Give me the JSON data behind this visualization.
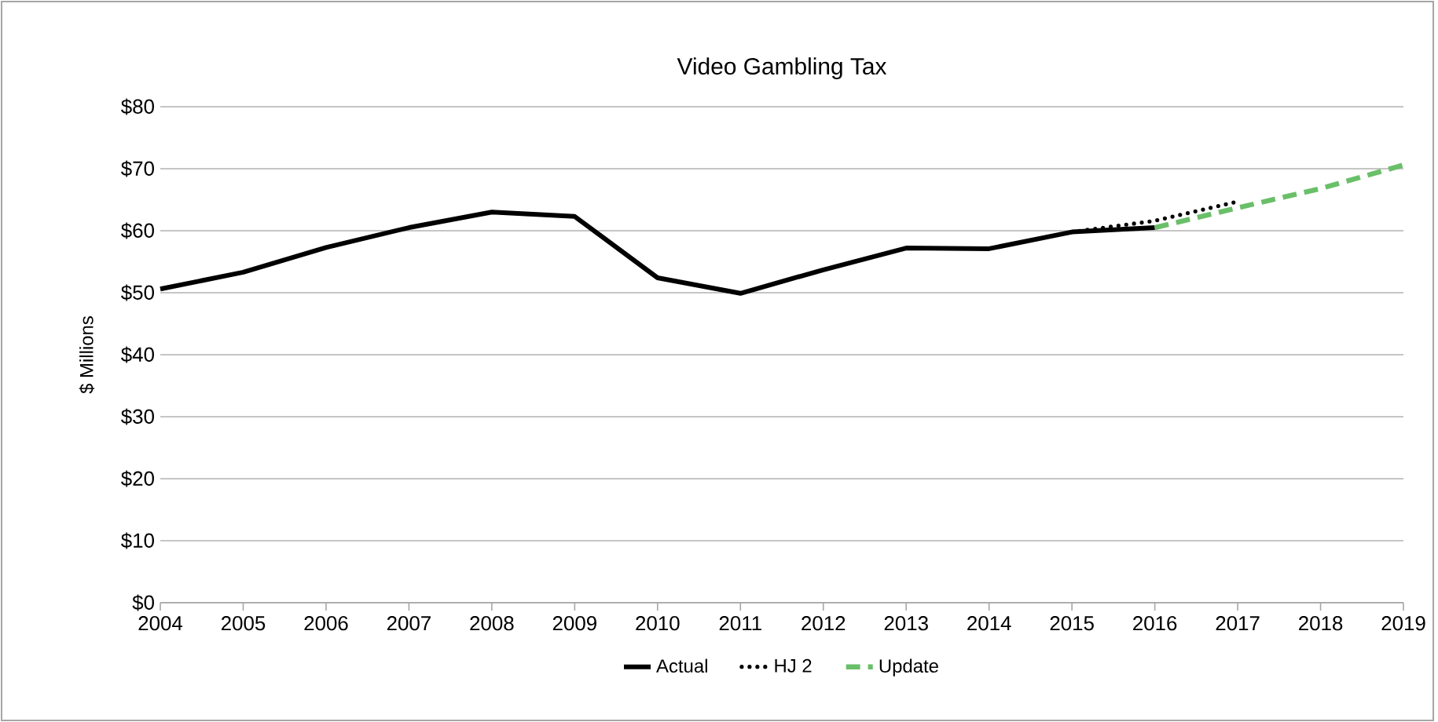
{
  "chart_data": {
    "type": "line",
    "title": "Video Gambling Tax",
    "ylabel": "$ Millions",
    "categories": [
      "2004",
      "2005",
      "2006",
      "2007",
      "2008",
      "2009",
      "2010",
      "2011",
      "2012",
      "2013",
      "2014",
      "2015",
      "2016",
      "2017",
      "2018",
      "2019"
    ],
    "ylim": [
      0,
      80
    ],
    "yticks": [
      {
        "value": 0,
        "label": "$0"
      },
      {
        "value": 10,
        "label": "$10"
      },
      {
        "value": 20,
        "label": "$20"
      },
      {
        "value": 30,
        "label": "$30"
      },
      {
        "value": 40,
        "label": "$40"
      },
      {
        "value": 50,
        "label": "$50"
      },
      {
        "value": 60,
        "label": "$60"
      },
      {
        "value": 70,
        "label": "$70"
      },
      {
        "value": 80,
        "label": "$80"
      }
    ],
    "grid": "y",
    "legend": "bottom",
    "marker": "none",
    "series": [
      {
        "name": "Actual",
        "color": "#000000",
        "line_style": "solid",
        "values": [
          50.6,
          53.3,
          57.3,
          60.5,
          63.0,
          62.3,
          52.4,
          49.9,
          53.7,
          57.2,
          57.1,
          59.8,
          60.5,
          null,
          null,
          null
        ]
      },
      {
        "name": "HJ 2",
        "color": "#000000",
        "line_style": "dotted",
        "values": [
          null,
          null,
          null,
          null,
          null,
          null,
          null,
          null,
          null,
          null,
          null,
          59.8,
          61.6,
          64.7,
          null,
          null
        ]
      },
      {
        "name": "Update",
        "color": "#6abf69",
        "line_style": "dashed",
        "values": [
          null,
          null,
          null,
          null,
          null,
          null,
          null,
          null,
          null,
          null,
          null,
          null,
          60.5,
          63.7,
          66.8,
          70.6
        ]
      }
    ]
  }
}
